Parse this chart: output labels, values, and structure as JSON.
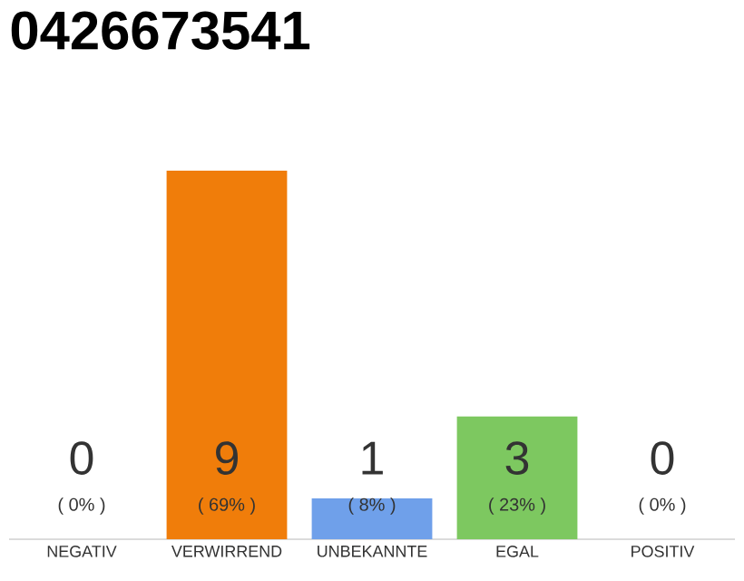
{
  "chart_data": {
    "type": "bar",
    "title": "0426673541",
    "categories": [
      "NEGATIV",
      "VERWIRREND",
      "UNBEKANNTE",
      "EGAL",
      "POSITIV"
    ],
    "values": [
      0,
      9,
      1,
      3,
      0
    ],
    "colors": [
      "#efefef",
      "#f07d0a",
      "#6fa0ea",
      "#7dc860",
      "#efefef"
    ],
    "data_labels": true,
    "annotations": [
      "( 0% )",
      "( 69% )",
      "( 8% )",
      "( 23% )",
      "( 0% )"
    ]
  }
}
